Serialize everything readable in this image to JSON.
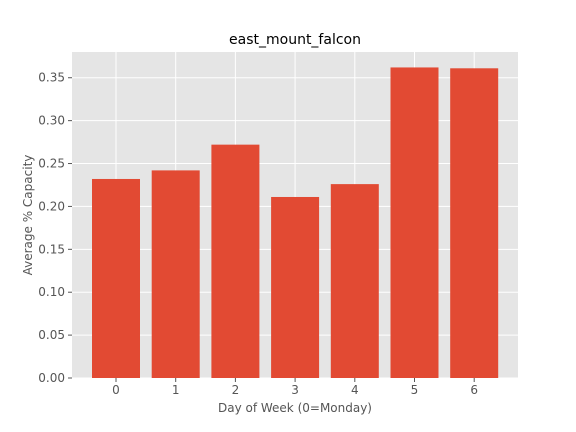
{
  "colors": {
    "plot_background": "#e5e5e5",
    "grid": "#ffffff",
    "bar": "#e24a33",
    "tick_text": "#555555",
    "title_text": "#000000"
  },
  "chart_data": {
    "type": "bar",
    "title": "east_mount_falcon",
    "xlabel": "Day of Week (0=Monday)",
    "ylabel": "Average % Capacity",
    "categories": [
      "0",
      "1",
      "2",
      "3",
      "4",
      "5",
      "6"
    ],
    "values": [
      0.232,
      0.242,
      0.272,
      0.211,
      0.226,
      0.362,
      0.361
    ],
    "ylim": [
      0,
      0.38
    ],
    "yticks": [
      "0.00",
      "0.05",
      "0.10",
      "0.15",
      "0.20",
      "0.25",
      "0.30",
      "0.35"
    ],
    "grid": true,
    "legend": "none"
  }
}
